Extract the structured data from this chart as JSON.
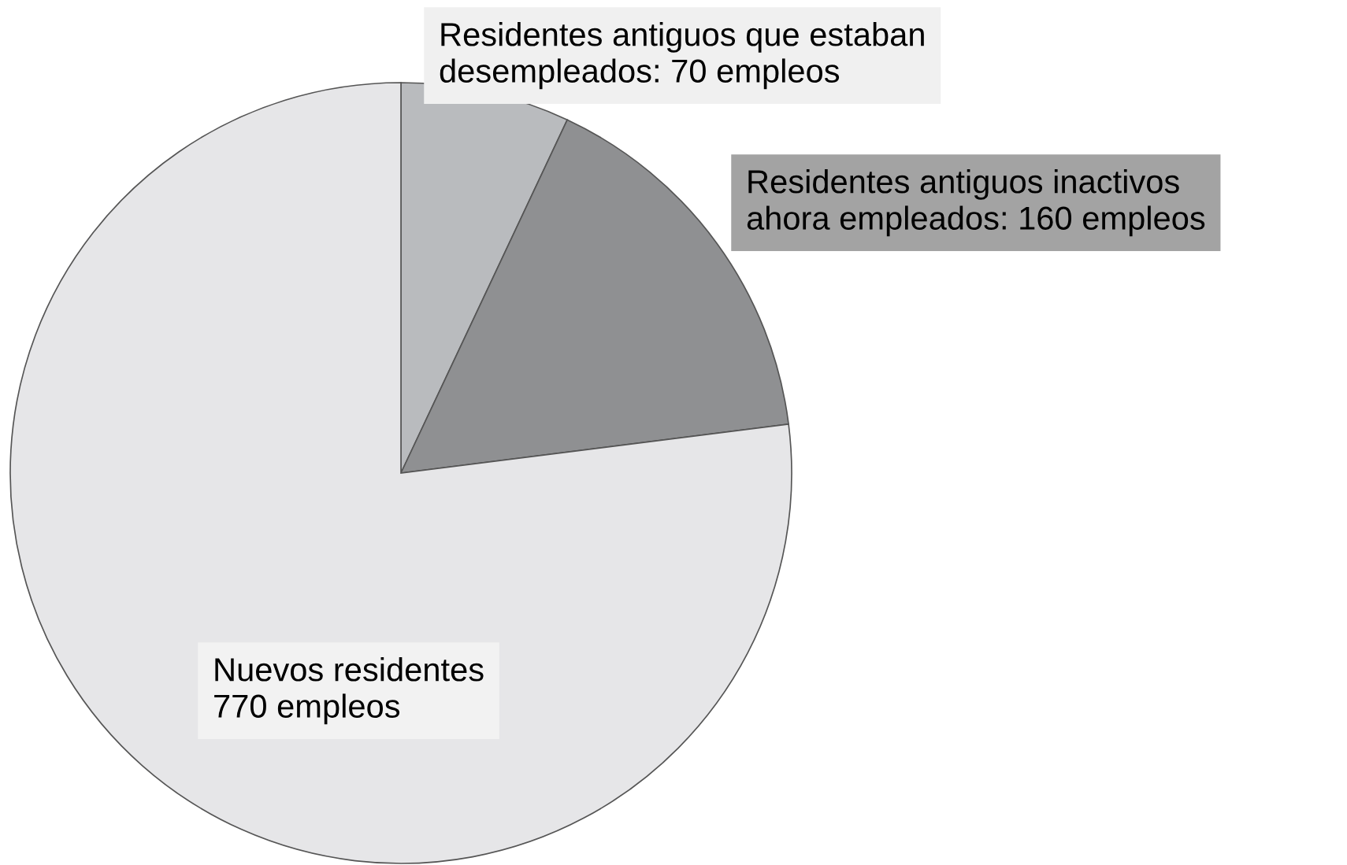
{
  "chart_data": {
    "type": "pie",
    "categories": [
      "Residentes antiguos que estaban desempleados: 70 empleos",
      "Residentes antiguos inactivos ahora empleados: 160 empleos",
      "Nuevos residentes 770 empleos"
    ],
    "values": [
      70,
      160,
      770
    ],
    "colors": [
      "#b9bbbe",
      "#8f9092",
      "#e6e6e8"
    ],
    "legend": false
  }
}
